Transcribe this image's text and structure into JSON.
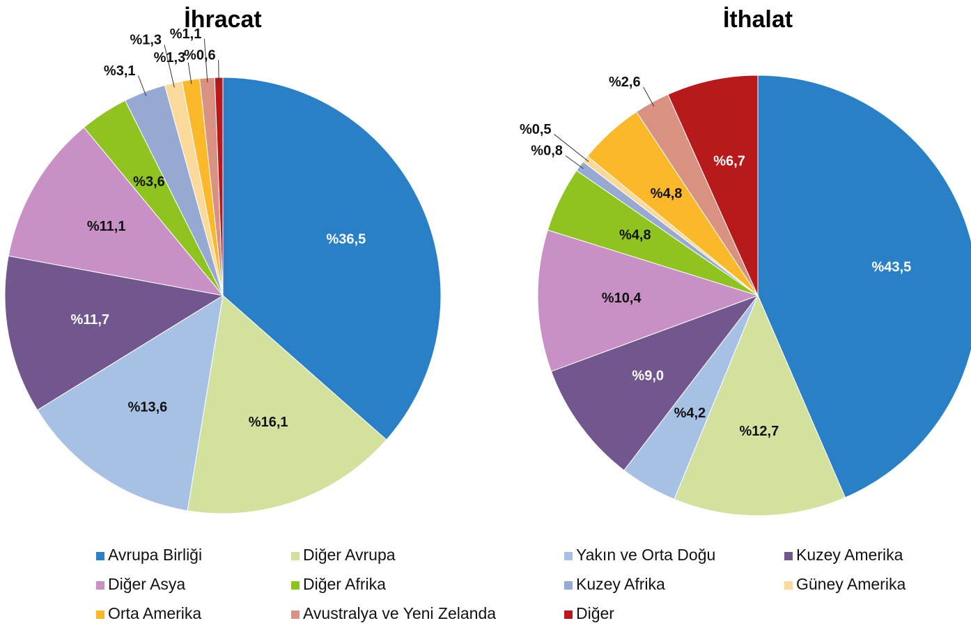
{
  "chart_data": [
    {
      "type": "pie",
      "title": "İhracat",
      "categories": [
        "Avrupa Birliği",
        "Diğer Avrupa",
        "Yakın ve Orta Doğu",
        "Kuzey Amerika",
        "Diğer Asya",
        "Diğer Afrika",
        "Kuzey Afrika",
        "Güney Amerika",
        "Orta Amerika",
        "Avustralya ve Yeni Zelanda",
        "Diğer"
      ],
      "values": [
        36.5,
        16.1,
        13.6,
        11.7,
        11.1,
        3.6,
        3.1,
        1.3,
        1.3,
        1.1,
        0.6
      ],
      "value_labels": [
        "%36,5",
        "%16,1",
        "%13,6",
        "%11,7",
        "%11,1",
        "%3,6",
        "%3,1",
        "%1,3",
        "%1,3",
        "%1,1",
        "%0,6"
      ],
      "colors": [
        "#2980c6",
        "#d2e19d",
        "#a7c1e4",
        "#72578e",
        "#c990c5",
        "#8fc31f",
        "#96a9d2",
        "#fbd99b",
        "#fbb828",
        "#d99182",
        "#b81a1c"
      ]
    },
    {
      "type": "pie",
      "title": "İthalat",
      "categories": [
        "Avrupa Birliği",
        "Diğer Avrupa",
        "Yakın ve Orta Doğu",
        "Kuzey Amerika",
        "Diğer Asya",
        "Diğer Afrika",
        "Kuzey Afrika",
        "Güney Amerika",
        "Orta Amerika",
        "Avustralya ve Yeni Zelanda",
        "Diğer"
      ],
      "values": [
        43.5,
        12.7,
        4.2,
        9.0,
        10.4,
        4.8,
        0.8,
        0.5,
        4.8,
        2.6,
        6.7
      ],
      "value_labels": [
        "%43,5",
        "%12,7",
        "%4,2",
        "%9,0",
        "%10,4",
        "%4,8",
        "%0,8",
        "%0,5",
        "%4,8",
        "%2,6",
        "%6,7"
      ],
      "colors": [
        "#2980c6",
        "#d2e19d",
        "#a7c1e4",
        "#72578e",
        "#c990c5",
        "#8fc31f",
        "#96a9d2",
        "#fbd99b",
        "#fbb828",
        "#d99182",
        "#b81a1c"
      ]
    }
  ]
}
